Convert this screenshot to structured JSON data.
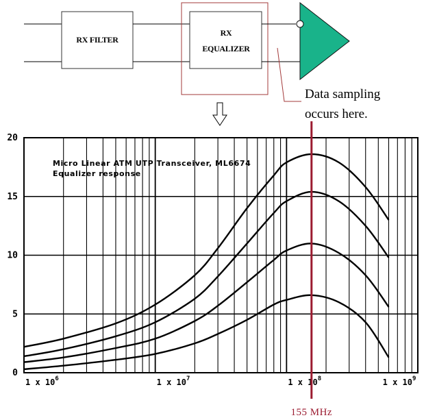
{
  "diagram": {
    "rx_filter_label": "RX FILTER",
    "rx_equalizer_label_line1": "RX",
    "rx_equalizer_label_line2": "EQUALIZER",
    "sampling_note_line1": "Data sampling",
    "sampling_note_line2": "occurs here.",
    "colors": {
      "amplifier": "#19b38a",
      "highlight": "#a33a3a"
    }
  },
  "chart_data": {
    "type": "line",
    "title_line1": "Micro Linear ATM UTP Transceiver, ML6674",
    "title_line2": "Equalizer response",
    "x_scale": "log",
    "xlim": [
      1000000,
      1000000000
    ],
    "ylim": [
      0,
      20
    ],
    "y_ticks": [
      "0",
      "5",
      "10",
      "15",
      "20"
    ],
    "x_ticks": [
      {
        "value": 1000000,
        "base": "1 x 10",
        "exp": "6"
      },
      {
        "value": 10000000,
        "base": "1 x 10",
        "exp": "7"
      },
      {
        "value": 100000000,
        "base": "1 x 10",
        "exp": "8"
      },
      {
        "value": 1000000000,
        "base": "1 x 10",
        "exp": "9"
      }
    ],
    "grid": true,
    "marker": {
      "x": 155000000,
      "label": "155 MHz",
      "color": "#9b1b30"
    },
    "series": [
      {
        "x": [
          1000000,
          2000000,
          5000000,
          10000000,
          20000000,
          30000000,
          50000000,
          80000000,
          100000000,
          155000000,
          250000000,
          400000000,
          600000000
        ],
        "values": [
          2.2,
          2.9,
          4.2,
          5.8,
          8.3,
          10.6,
          14.0,
          16.8,
          17.9,
          18.6,
          17.9,
          15.8,
          13.0
        ]
      },
      {
        "x": [
          1000000,
          2000000,
          5000000,
          10000000,
          20000000,
          30000000,
          50000000,
          80000000,
          100000000,
          155000000,
          250000000,
          400000000,
          600000000
        ],
        "values": [
          1.4,
          2.0,
          3.1,
          4.3,
          6.3,
          8.2,
          11.0,
          13.6,
          14.6,
          15.4,
          14.6,
          12.5,
          9.8
        ]
      },
      {
        "x": [
          1000000,
          2000000,
          5000000,
          10000000,
          20000000,
          30000000,
          50000000,
          80000000,
          100000000,
          155000000,
          250000000,
          400000000,
          600000000
        ],
        "values": [
          0.9,
          1.3,
          2.1,
          2.9,
          4.4,
          5.7,
          7.7,
          9.6,
          10.4,
          11.0,
          10.2,
          8.3,
          5.6
        ]
      },
      {
        "x": [
          1000000,
          2000000,
          5000000,
          10000000,
          20000000,
          30000000,
          50000000,
          80000000,
          100000000,
          155000000,
          250000000,
          400000000,
          600000000
        ],
        "values": [
          0.3,
          0.6,
          1.1,
          1.6,
          2.5,
          3.3,
          4.5,
          5.8,
          6.2,
          6.6,
          6.0,
          4.3,
          1.3
        ]
      }
    ]
  }
}
